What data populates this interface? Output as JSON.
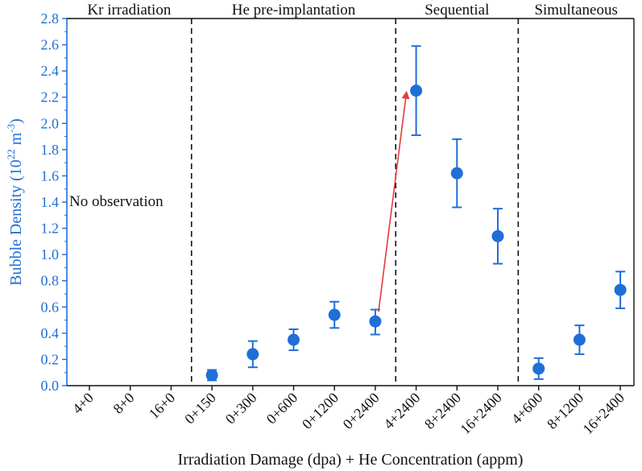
{
  "chart_data": {
    "type": "scatter",
    "xlabel": "Irradiation Damage (dpa) + He Concentration (appm)",
    "ylabel": {
      "base": "Bubble Density (10",
      "exp1": "22",
      "mid": " m",
      "exp2": "-3",
      "end": ")"
    },
    "ylim": [
      0,
      2.8
    ],
    "yticks": [
      "0.0",
      "0.2",
      "0.4",
      "0.6",
      "0.8",
      "1.0",
      "1.2",
      "1.4",
      "1.6",
      "1.8",
      "2.0",
      "2.2",
      "2.4",
      "2.6",
      "2.8"
    ],
    "categories": [
      "4+0",
      "8+0",
      "16+0",
      "0+150",
      "0+300",
      "0+600",
      "0+1200",
      "0+2400",
      "4+2400",
      "8+2400",
      "16+2400",
      "4+600",
      "8+1200",
      "16+2400"
    ],
    "series": [
      {
        "points": [
          {
            "category": "0+150",
            "y": 0.08,
            "err_low": 0.04,
            "err_high": 0.12
          },
          {
            "category": "0+300",
            "y": 0.24,
            "err_low": 0.14,
            "err_high": 0.34
          },
          {
            "category": "0+600",
            "y": 0.35,
            "err_low": 0.27,
            "err_high": 0.43
          },
          {
            "category": "0+1200",
            "y": 0.54,
            "err_low": 0.44,
            "err_high": 0.64
          },
          {
            "category": "0+2400",
            "y": 0.49,
            "err_low": 0.39,
            "err_high": 0.58
          },
          {
            "category": "4+2400",
            "y": 2.25,
            "err_low": 1.91,
            "err_high": 2.59
          },
          {
            "category": "8+2400",
            "y": 1.62,
            "err_low": 1.36,
            "err_high": 1.88
          },
          {
            "category": "16+2400",
            "y": 1.14,
            "err_low": 0.93,
            "err_high": 1.35
          },
          {
            "category": "4+600",
            "y": 0.13,
            "err_low": 0.05,
            "err_high": 0.21
          },
          {
            "category": "8+1200",
            "y": 0.35,
            "err_low": 0.24,
            "err_high": 0.46
          },
          {
            "category": "16+2400",
            "y": 0.73,
            "err_low": 0.59,
            "err_high": 0.87
          }
        ]
      }
    ],
    "regions": [
      {
        "label": "Kr irradiation"
      },
      {
        "label": "He pre-implantation"
      },
      {
        "label": "Sequential"
      },
      {
        "label": "Simultaneous"
      }
    ],
    "annotation": "No observation",
    "arrow": {
      "from": {
        "category": "0+2400",
        "y": 0.6
      },
      "to": {
        "category": "4+2400",
        "y": 2.2
      }
    },
    "colors": {
      "points": "#1f6fd6",
      "ylabel": "#1f6fd6",
      "arrow": "#e23b3b",
      "axis": "#111111"
    },
    "grid": false
  }
}
